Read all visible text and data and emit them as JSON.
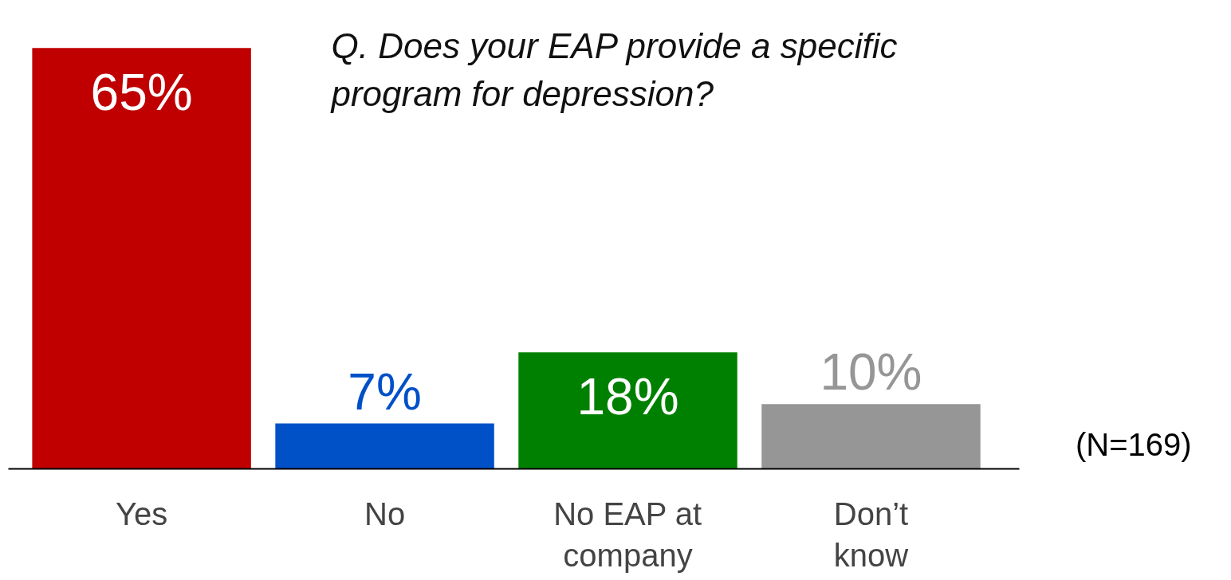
{
  "chart_data": {
    "type": "bar",
    "title": "Q. Does your EAP provide a specific program for depression?",
    "categories": [
      "Yes",
      "No",
      "No EAP at company",
      "Don’t know"
    ],
    "values": [
      65,
      7,
      18,
      10
    ],
    "colors": [
      "#c00000",
      "#0050c8",
      "#008000",
      "#969696"
    ],
    "data_labels": true,
    "value_labels": [
      "65%",
      "7%",
      "18%",
      "10%"
    ],
    "annotations": [
      "(N=169)"
    ]
  }
}
